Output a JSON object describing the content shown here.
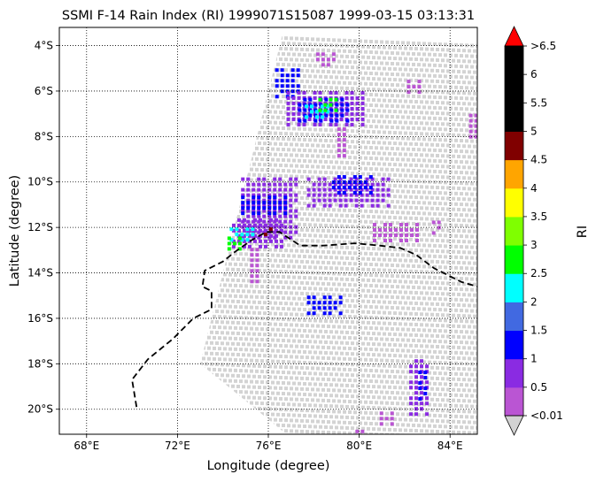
{
  "chart_data": {
    "type": "heatmap",
    "title": "SSMI F-14 Rain Index (RI) 1999071S15087 1999-03-15 03:13:31",
    "xlabel": "Longitude (degree)",
    "ylabel": "Latitude (degree)",
    "colorbar_label": "RI",
    "xlim": [
      66.8,
      85.2
    ],
    "ylim": [
      -21.1,
      -3.2
    ],
    "x_ticks": [
      {
        "value": 68,
        "label": "68°E"
      },
      {
        "value": 72,
        "label": "72°E"
      },
      {
        "value": 76,
        "label": "76°E"
      },
      {
        "value": 80,
        "label": "80°E"
      },
      {
        "value": 84,
        "label": "84°E"
      }
    ],
    "y_ticks": [
      {
        "value": -4,
        "label": "4°S"
      },
      {
        "value": -6,
        "label": "6°S"
      },
      {
        "value": -8,
        "label": "8°S"
      },
      {
        "value": -10,
        "label": "10°S"
      },
      {
        "value": -12,
        "label": "12°S"
      },
      {
        "value": -14,
        "label": "14°S"
      },
      {
        "value": -16,
        "label": "16°S"
      },
      {
        "value": -18,
        "label": "18°S"
      },
      {
        "value": -20,
        "label": "20°S"
      }
    ],
    "grid": "dotted",
    "no_rain_color": "#d3d3d3",
    "colorbar_bins": [
      {
        "color": "#ba55d3",
        "label": "<0.01"
      },
      {
        "color": "#8a2be2",
        "label": "0.5"
      },
      {
        "color": "#0000ff",
        "label": "1"
      },
      {
        "color": "#4169e1",
        "label": "1.5"
      },
      {
        "color": "#00ffff",
        "label": "2"
      },
      {
        "color": "#00ff00",
        "label": "2.5"
      },
      {
        "color": "#7fff00",
        "label": "3"
      },
      {
        "color": "#ffff00",
        "label": "3.5"
      },
      {
        "color": "#ffa500",
        "label": "4"
      },
      {
        "color": "#800000",
        "label": "4.5"
      },
      {
        "color": "#000000",
        "label": "5"
      },
      {
        "color": "#000000",
        "label": "5.5"
      },
      {
        "color": "#000000",
        "label": "6"
      }
    ],
    "colorbar_top_label": ">6.5",
    "over_color": "#ff0000",
    "under_color": "#d3d3d3",
    "swath_polygon": [
      [
        76.7,
        -3.2
      ],
      [
        85.2,
        -3.2
      ],
      [
        85.2,
        -21.1
      ],
      [
        76.8,
        -21.1
      ],
      [
        73.0,
        -18.0
      ],
      [
        74.5,
        -12.0
      ]
    ],
    "rain_cells": [
      {
        "lon": 76.3,
        "lat": -5.0,
        "lon2": 77.3,
        "lat2": -6.2,
        "ri": 1.0
      },
      {
        "lon": 76.8,
        "lat": -6.0,
        "lon2": 80.2,
        "lat2": -7.6,
        "ri": 0.5
      },
      {
        "lon": 77.3,
        "lat": -6.3,
        "lon2": 79.6,
        "lat2": -7.3,
        "ri": 1.2
      },
      {
        "lon": 77.6,
        "lat": -6.6,
        "lon2": 78.6,
        "lat2": -7.2,
        "ri": 2.2
      },
      {
        "lon": 78.2,
        "lat": -6.3,
        "lon2": 79.0,
        "lat2": -6.9,
        "ri": 2.7
      },
      {
        "lon": 78.8,
        "lat": -7.6,
        "lon2": 79.5,
        "lat2": -9.0,
        "ri": 0.4
      },
      {
        "lon": 74.8,
        "lat": -9.8,
        "lon2": 77.2,
        "lat2": -12.5,
        "ri": 0.5
      },
      {
        "lon": 74.8,
        "lat": -10.6,
        "lon2": 76.8,
        "lat2": -11.4,
        "ri": 1.2
      },
      {
        "lon": 74.4,
        "lat": -11.6,
        "lon2": 76.7,
        "lat2": -13.0,
        "ri": 0.9
      },
      {
        "lon": 74.3,
        "lat": -12.0,
        "lon2": 75.3,
        "lat2": -12.5,
        "ri": 2.2
      },
      {
        "lon": 74.2,
        "lat": -12.4,
        "lon2": 74.9,
        "lat2": -12.9,
        "ri": 2.7
      },
      {
        "lon": 75.8,
        "lat": -12.0,
        "lon2": 76.2,
        "lat2": -12.3,
        "ri": 4.7
      },
      {
        "lon": 75.2,
        "lat": -12.9,
        "lon2": 75.8,
        "lat2": -14.4,
        "ri": 0.4
      },
      {
        "lon": 77.7,
        "lat": -9.8,
        "lon2": 81.4,
        "lat2": -11.2,
        "ri": 0.6
      },
      {
        "lon": 78.8,
        "lat": -9.7,
        "lon2": 80.6,
        "lat2": -10.6,
        "ri": 1.2
      },
      {
        "lon": 77.7,
        "lat": -15.0,
        "lon2": 79.2,
        "lat2": -15.8,
        "ri": 1.1
      },
      {
        "lon": 80.6,
        "lat": -11.8,
        "lon2": 82.7,
        "lat2": -12.7,
        "ri": 0.4
      },
      {
        "lon": 82.2,
        "lat": -17.8,
        "lon2": 83.1,
        "lat2": -20.2,
        "ri": 0.5
      },
      {
        "lon": 82.6,
        "lat": -18.3,
        "lon2": 83.0,
        "lat2": -19.6,
        "ri": 1.2
      },
      {
        "lon": 80.9,
        "lat": -20.1,
        "lon2": 81.6,
        "lat2": -20.7,
        "ri": 0.4
      },
      {
        "lon": 79.6,
        "lat": -20.9,
        "lon2": 80.2,
        "lat2": -21.1,
        "ri": 0.3
      },
      {
        "lon": 78.1,
        "lat": -4.3,
        "lon2": 79.0,
        "lat2": -4.9,
        "ri": 0.3
      },
      {
        "lon": 82.1,
        "lat": -5.5,
        "lon2": 82.6,
        "lat2": -6.0,
        "ri": 0.3
      },
      {
        "lon": 84.6,
        "lat": -7.0,
        "lon2": 85.2,
        "lat2": -8.0,
        "ri": 0.3
      },
      {
        "lon": 83.2,
        "lat": -11.7,
        "lon2": 83.6,
        "lat2": -12.2,
        "ri": 0.3
      }
    ],
    "track": [
      [
        70.2,
        -19.9
      ],
      [
        70.0,
        -18.7
      ],
      [
        70.7,
        -17.8
      ],
      [
        71.8,
        -16.9
      ],
      [
        72.7,
        -16.0
      ],
      [
        73.5,
        -15.6
      ],
      [
        73.5,
        -14.8
      ],
      [
        73.1,
        -14.6
      ],
      [
        73.2,
        -13.9
      ],
      [
        74.0,
        -13.5
      ],
      [
        74.5,
        -13.1
      ],
      [
        75.2,
        -12.6
      ],
      [
        75.9,
        -12.2
      ],
      [
        76.5,
        -12.2
      ],
      [
        77.4,
        -12.8
      ],
      [
        78.4,
        -12.8
      ],
      [
        79.8,
        -12.7
      ],
      [
        80.9,
        -12.8
      ],
      [
        81.8,
        -12.9
      ],
      [
        82.5,
        -13.2
      ],
      [
        83.3,
        -13.8
      ],
      [
        84.5,
        -14.4
      ],
      [
        85.2,
        -14.6
      ]
    ]
  }
}
